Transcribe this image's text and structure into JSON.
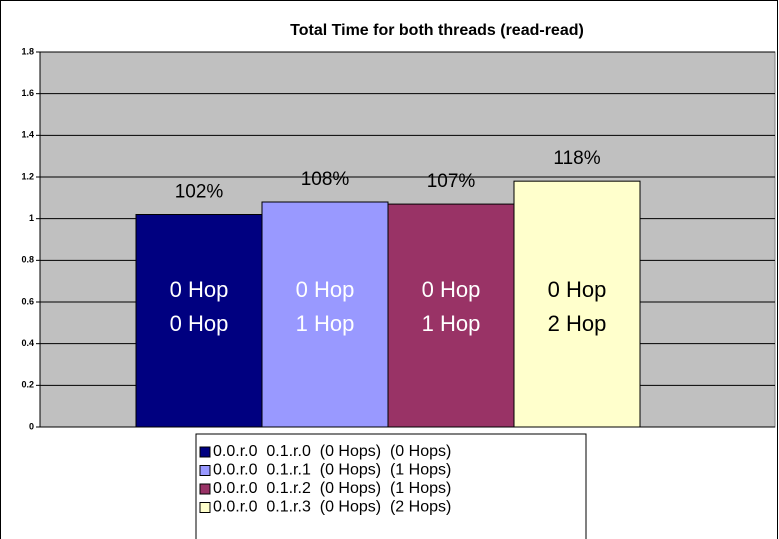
{
  "chart_data": {
    "type": "bar",
    "title": "Total Time for both threads (read-read)",
    "ylim": [
      0,
      1.8
    ],
    "yticks": [
      0,
      0.2,
      0.4,
      0.6,
      0.8,
      1,
      1.2,
      1.4,
      1.6,
      1.8
    ],
    "grid": true,
    "series": [
      {
        "name": "0.0.r.0  0.1.r.0  (0 Hops)  (0 Hops)",
        "color": "#000080",
        "values": [
          1.02
        ],
        "value_labels": [
          "102%"
        ],
        "inner_label": [
          "0 Hop",
          "0 Hop"
        ],
        "inner_color": "#ffffff"
      },
      {
        "name": "0.0.r.0  0.1.r.1  (0 Hops)  (1 Hops)",
        "color": "#9999ff",
        "values": [
          1.08
        ],
        "value_labels": [
          "108%"
        ],
        "inner_label": [
          "0 Hop",
          "1 Hop"
        ],
        "inner_color": "#ffffff"
      },
      {
        "name": "0.0.r.0  0.1.r.2  (0 Hops)  (1 Hops)",
        "color": "#993366",
        "values": [
          1.07
        ],
        "value_labels": [
          "107%"
        ],
        "inner_label": [
          "0 Hop",
          "1 Hop"
        ],
        "inner_color": "#ffffff"
      },
      {
        "name": "0.0.r.0  0.1.r.3  (0 Hops)  (2 Hops)",
        "color": "#ffffcc",
        "values": [
          1.18
        ],
        "value_labels": [
          "118%"
        ],
        "inner_label": [
          "0 Hop",
          "2 Hop"
        ],
        "inner_color": "#000000"
      }
    ]
  }
}
